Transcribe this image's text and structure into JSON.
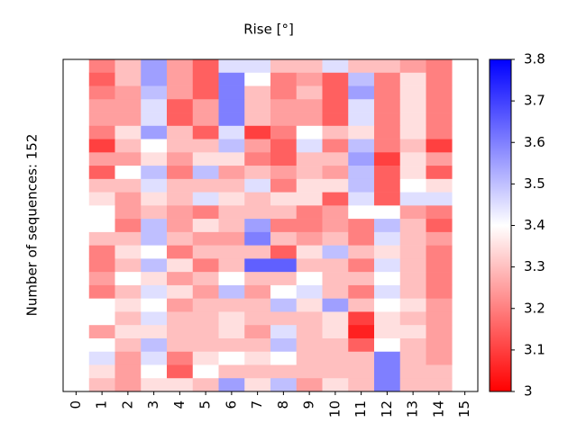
{
  "chart_data": {
    "type": "heatmap",
    "title": "Rise [°]",
    "ylabel": "Number of sequences: 152",
    "columns": [
      0,
      1,
      2,
      3,
      4,
      5,
      6,
      7,
      8,
      9,
      10,
      11,
      12,
      13,
      14,
      15
    ],
    "colormap": {
      "low": "#ff0000",
      "mid": "#ffffff",
      "high": "#0000ff"
    },
    "clim": [
      3,
      3.8
    ],
    "cticks": [
      3,
      3.1,
      3.2,
      3.3,
      3.4,
      3.5,
      3.6,
      3.7,
      3.8
    ],
    "values": [
      [
        null,
        3.2,
        3.3,
        3.55,
        3.25,
        3.15,
        3.45,
        3.45,
        3.3,
        3.3,
        3.45,
        3.3,
        3.3,
        3.25,
        3.2,
        null
      ],
      [
        null,
        3.15,
        3.3,
        3.55,
        3.25,
        3.15,
        3.6,
        3.4,
        3.2,
        3.25,
        3.15,
        3.5,
        3.2,
        3.35,
        3.2,
        null
      ],
      [
        null,
        3.2,
        3.25,
        3.5,
        3.25,
        3.15,
        3.6,
        3.3,
        3.2,
        3.3,
        3.15,
        3.55,
        3.2,
        3.35,
        3.2,
        null
      ],
      [
        null,
        3.25,
        3.25,
        3.45,
        3.15,
        3.25,
        3.6,
        3.3,
        3.25,
        3.25,
        3.15,
        3.45,
        3.2,
        3.35,
        3.2,
        null
      ],
      [
        null,
        3.25,
        3.25,
        3.45,
        3.15,
        3.25,
        3.6,
        3.3,
        3.25,
        3.25,
        3.15,
        3.45,
        3.2,
        3.35,
        3.2,
        null
      ],
      [
        null,
        3.2,
        3.35,
        3.55,
        3.3,
        3.15,
        3.45,
        3.1,
        3.2,
        3.4,
        3.3,
        3.35,
        3.2,
        3.35,
        3.2,
        null
      ],
      [
        null,
        3.1,
        3.3,
        3.4,
        3.3,
        3.3,
        3.5,
        3.25,
        3.15,
        3.45,
        3.2,
        3.5,
        3.2,
        3.3,
        3.1,
        null
      ],
      [
        null,
        3.25,
        3.25,
        3.35,
        3.25,
        3.35,
        3.35,
        3.2,
        3.15,
        3.3,
        3.3,
        3.55,
        3.1,
        3.35,
        3.25,
        null
      ],
      [
        null,
        3.15,
        3.4,
        3.5,
        3.2,
        3.5,
        3.25,
        3.3,
        3.25,
        3.3,
        3.25,
        3.5,
        3.15,
        3.35,
        3.15,
        null
      ],
      [
        null,
        3.3,
        3.3,
        3.45,
        3.3,
        3.3,
        3.3,
        3.45,
        3.2,
        3.35,
        3.35,
        3.5,
        3.15,
        3.4,
        3.35,
        null
      ],
      [
        null,
        3.35,
        3.25,
        3.35,
        3.3,
        3.45,
        3.35,
        3.3,
        3.35,
        3.35,
        3.15,
        3.45,
        3.15,
        3.45,
        3.45,
        null
      ],
      [
        null,
        3.4,
        3.25,
        3.3,
        3.25,
        3.2,
        3.3,
        3.3,
        3.3,
        3.2,
        3.25,
        3.4,
        3.4,
        3.25,
        3.2,
        null
      ],
      [
        null,
        3.4,
        3.2,
        3.5,
        3.25,
        3.35,
        3.3,
        3.55,
        3.2,
        3.2,
        3.25,
        3.2,
        3.5,
        3.3,
        3.15,
        null
      ],
      [
        null,
        3.3,
        3.3,
        3.5,
        3.3,
        3.25,
        3.25,
        3.6,
        3.3,
        3.25,
        3.3,
        3.2,
        3.45,
        3.3,
        3.25,
        null
      ],
      [
        null,
        3.2,
        3.35,
        3.4,
        3.2,
        3.3,
        3.3,
        3.3,
        3.15,
        3.35,
        3.5,
        3.3,
        3.35,
        3.3,
        3.2,
        null
      ],
      [
        null,
        3.2,
        3.3,
        3.5,
        3.35,
        3.2,
        3.3,
        3.65,
        3.65,
        3.3,
        3.3,
        3.2,
        3.45,
        3.3,
        3.2,
        null
      ],
      [
        null,
        3.25,
        3.4,
        3.35,
        3.25,
        3.3,
        3.4,
        3.3,
        3.3,
        3.4,
        3.3,
        3.3,
        3.4,
        3.3,
        3.2,
        null
      ],
      [
        null,
        3.2,
        3.3,
        3.45,
        3.35,
        3.25,
        3.5,
        3.25,
        3.4,
        3.45,
        3.3,
        3.2,
        3.45,
        3.3,
        3.2,
        null
      ],
      [
        null,
        3.4,
        3.35,
        3.4,
        3.25,
        3.3,
        3.3,
        3.3,
        3.5,
        3.35,
        3.55,
        3.3,
        3.4,
        3.35,
        3.25,
        null
      ],
      [
        null,
        3.4,
        3.3,
        3.45,
        3.3,
        3.3,
        3.35,
        3.3,
        3.3,
        3.3,
        3.35,
        3.1,
        3.35,
        3.3,
        3.25,
        null
      ],
      [
        null,
        3.25,
        3.35,
        3.35,
        3.3,
        3.3,
        3.35,
        3.25,
        3.45,
        3.3,
        3.35,
        3.05,
        3.35,
        3.35,
        3.25,
        null
      ],
      [
        null,
        3.4,
        3.3,
        3.5,
        3.3,
        3.3,
        3.3,
        3.3,
        3.5,
        3.3,
        3.3,
        3.15,
        3.4,
        3.3,
        3.25,
        null
      ],
      [
        null,
        3.45,
        3.25,
        3.45,
        3.2,
        3.35,
        3.4,
        3.35,
        3.4,
        3.3,
        3.3,
        3.3,
        3.6,
        3.3,
        3.25,
        null
      ],
      [
        null,
        3.35,
        3.25,
        3.4,
        3.15,
        3.4,
        3.3,
        3.3,
        3.3,
        3.3,
        3.3,
        3.3,
        3.6,
        3.3,
        3.3,
        null
      ],
      [
        null,
        3.3,
        3.25,
        3.35,
        3.35,
        3.3,
        3.55,
        3.35,
        3.5,
        3.25,
        3.35,
        3.3,
        3.6,
        3.3,
        3.3,
        null
      ]
    ]
  }
}
